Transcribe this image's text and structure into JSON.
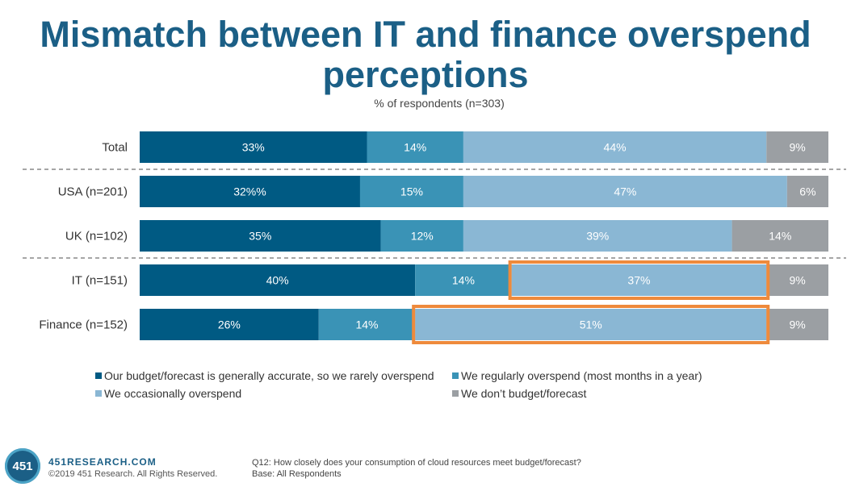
{
  "title": "Mismatch between IT and finance overspend perceptions",
  "subtitle": "% of respondents (n=303)",
  "colors": {
    "accurate": "#005a83",
    "regularly": "#3a93b6",
    "occasionally": "#8ab7d4",
    "no_budget": "#9b9fa3",
    "highlight": "#ee8a3c",
    "divider": "#888888"
  },
  "chart_data": {
    "type": "bar",
    "orientation": "horizontal",
    "stacked": true,
    "categories": [
      "Total",
      "USA (n=201)",
      "UK (n=102)",
      "IT (n=151)",
      "Finance (n=152)"
    ],
    "series": [
      {
        "name": "Our budget/forecast is generally accurate, so we rarely overspend",
        "values": [
          33,
          32,
          35,
          40,
          26
        ],
        "labels": [
          "33%",
          "32%%",
          "35%",
          "40%",
          "26%"
        ]
      },
      {
        "name": "We regularly overspend (most months in a year)",
        "values": [
          14,
          15,
          12,
          14,
          14
        ],
        "labels": [
          "14%",
          "15%",
          "12%",
          "14%",
          "14%"
        ]
      },
      {
        "name": "We occasionally overspend",
        "values": [
          44,
          47,
          39,
          37,
          51
        ],
        "labels": [
          "44%",
          "47%",
          "39%",
          "37%",
          "51%"
        ]
      },
      {
        "name": "We don’t budget/forecast",
        "values": [
          9,
          6,
          14,
          9,
          9
        ],
        "labels": [
          "9%",
          "6%",
          "14%",
          "9%",
          "9%"
        ]
      }
    ],
    "xlim": [
      0,
      100
    ],
    "legend_position": "bottom",
    "highlighted": [
      {
        "category": "IT (n=151)",
        "series": 2
      },
      {
        "category": "Finance (n=152)",
        "series": 2
      }
    ],
    "dividers_after": [
      "Total",
      "UK (n=102)"
    ]
  },
  "footer": {
    "logo_text": "451",
    "site": "451RESEARCH.COM",
    "copyright": "©2019 451 Research. All Rights Reserved.",
    "question": "Q12: How closely does your consumption of cloud resources meet budget/forecast?",
    "base": "Base: All Respondents"
  }
}
